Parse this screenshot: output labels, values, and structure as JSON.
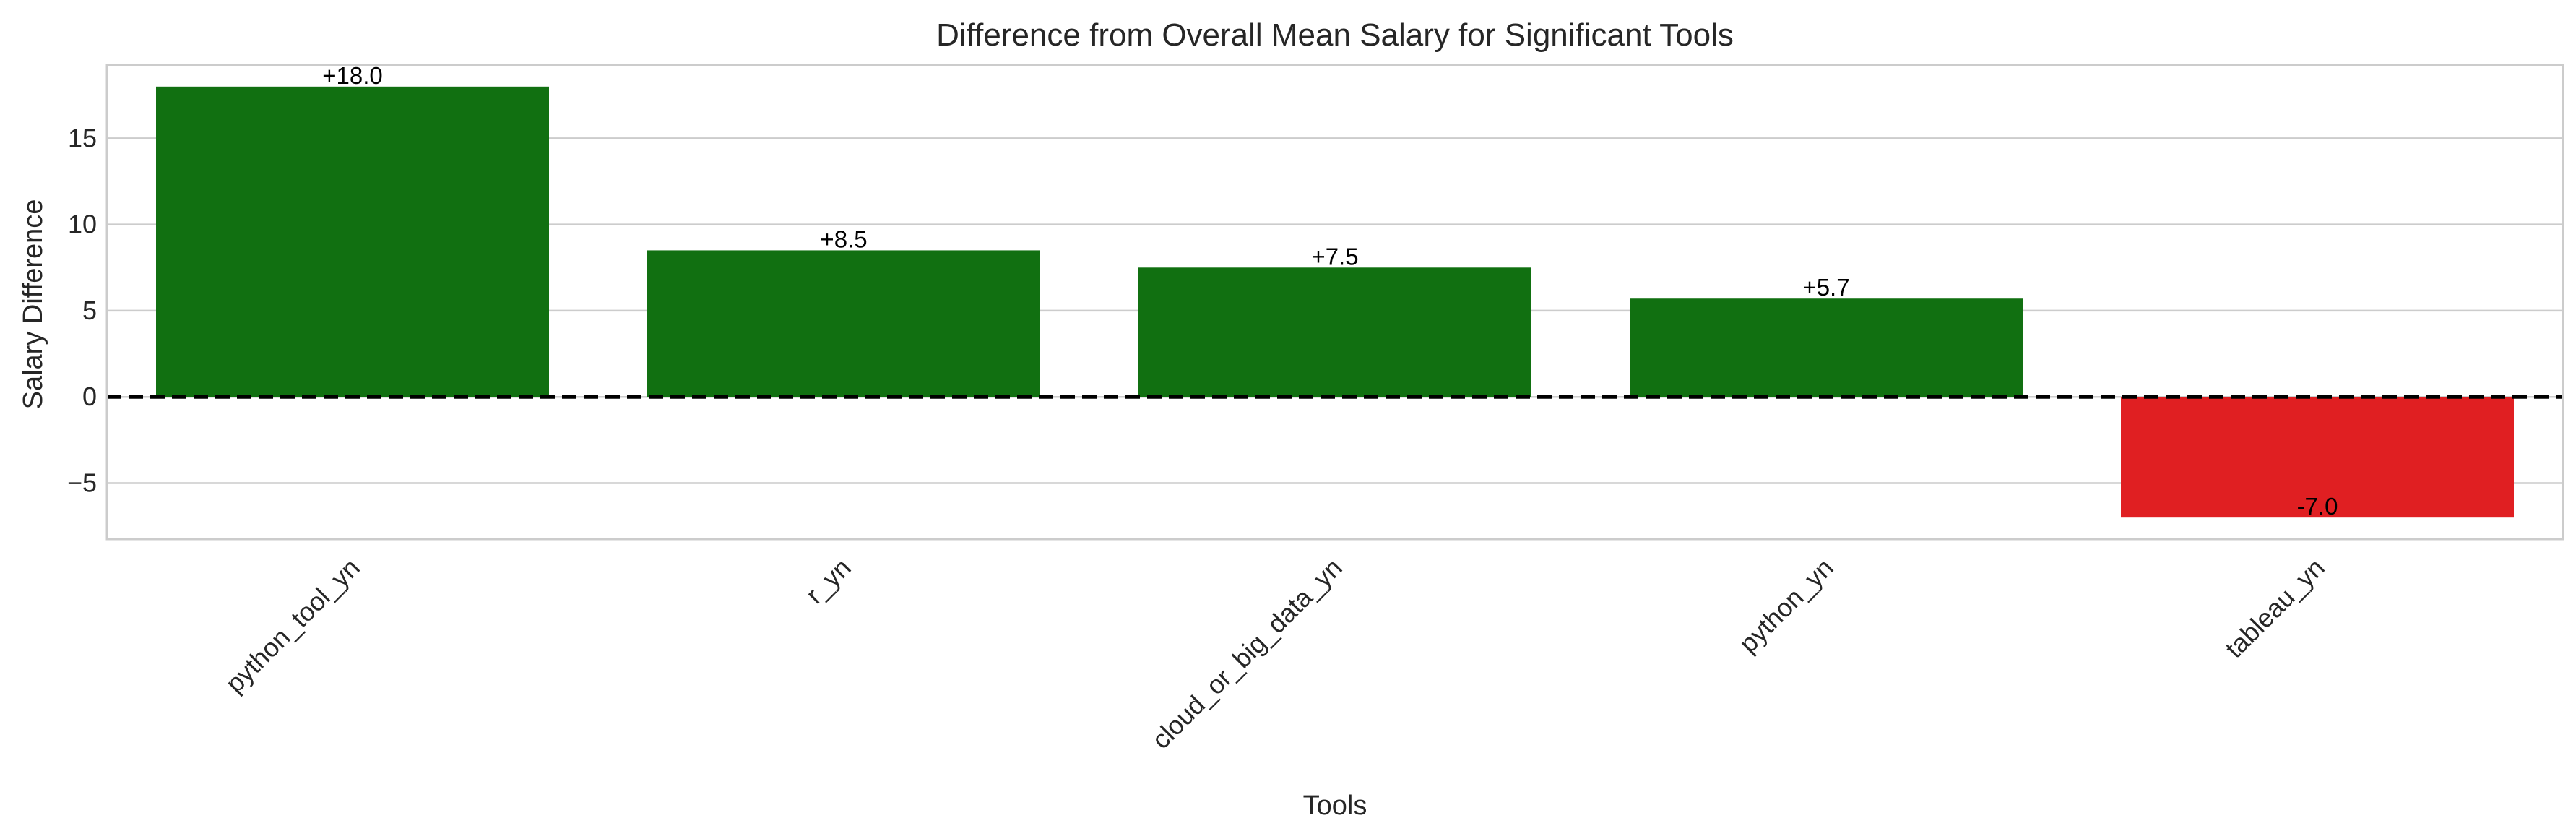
{
  "chart_data": {
    "type": "bar",
    "title": "Difference from Overall Mean Salary for Significant Tools",
    "xlabel": "Tools",
    "ylabel": "Salary Difference",
    "categories": [
      "python_tool_yn",
      "r_yn",
      "cloud_or_big_data_yn",
      "python_yn",
      "tableau_yn"
    ],
    "values": [
      18.0,
      8.5,
      7.5,
      5.7,
      -7.0
    ],
    "data_labels": [
      "+18.0",
      "+8.5",
      "+7.5",
      "+5.7",
      "-7.0"
    ],
    "ylim": [
      -8.25,
      19.25
    ],
    "yticks": [
      -5,
      0,
      5,
      10,
      15
    ],
    "ytick_labels": [
      "−5",
      "0",
      "5",
      "10",
      "15"
    ],
    "grid": "horizontal",
    "reference_line": 0,
    "colors": {
      "positive": "#117011",
      "negative": "#e01f22",
      "grid": "#cccccc",
      "frame": "#cccccc",
      "reference": "#000000"
    }
  }
}
